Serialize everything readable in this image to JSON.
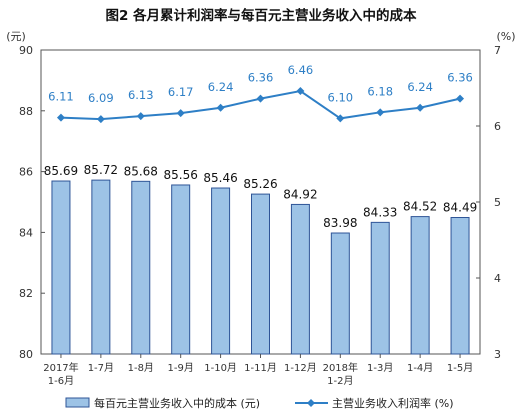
{
  "chart_data": {
    "type": "bar",
    "title": "图2  各月累计利润率与每百元主营业务收入中的成本",
    "y_left_unit": "(元)",
    "y_right_unit": "(%)",
    "categories": [
      [
        "2017年",
        "1-6月"
      ],
      [
        "1-7月"
      ],
      [
        "1-8月"
      ],
      [
        "1-9月"
      ],
      [
        "1-10月"
      ],
      [
        "1-11月"
      ],
      [
        "1-12月"
      ],
      [
        "2018年",
        "1-2月"
      ],
      [
        "1-3月"
      ],
      [
        "1-4月"
      ],
      [
        "1-5月"
      ]
    ],
    "ylim_left": [
      80,
      90
    ],
    "yticks_left": [
      80,
      82,
      84,
      86,
      88,
      90
    ],
    "ylim_right": [
      3,
      7
    ],
    "yticks_right": [
      3,
      4,
      5,
      6,
      7
    ],
    "grid": false,
    "legend_position": "bottom",
    "series": [
      {
        "name": "每百元主营业务收入中的成本 (元)",
        "type": "bar",
        "axis": "left",
        "color": "#9dc3e6",
        "values": [
          85.69,
          85.72,
          85.68,
          85.56,
          85.46,
          85.26,
          84.92,
          83.98,
          84.33,
          84.52,
          84.49
        ],
        "labels": [
          "85.69",
          "85.72",
          "85.68",
          "85.56",
          "85.46",
          "85.26",
          "84.92",
          "83.98",
          "84.33",
          "84.52",
          "84.49"
        ]
      },
      {
        "name": "主营业务收入利润率 (%)",
        "type": "line",
        "axis": "right",
        "color": "#2e7fc6",
        "values": [
          6.11,
          6.09,
          6.13,
          6.17,
          6.24,
          6.36,
          6.46,
          6.1,
          6.18,
          6.24,
          6.36
        ],
        "labels": [
          "6.11",
          "6.09",
          "6.13",
          "6.17",
          "6.24",
          "6.36",
          "6.46",
          "6.10",
          "6.18",
          "6.24",
          "6.36"
        ]
      }
    ]
  }
}
